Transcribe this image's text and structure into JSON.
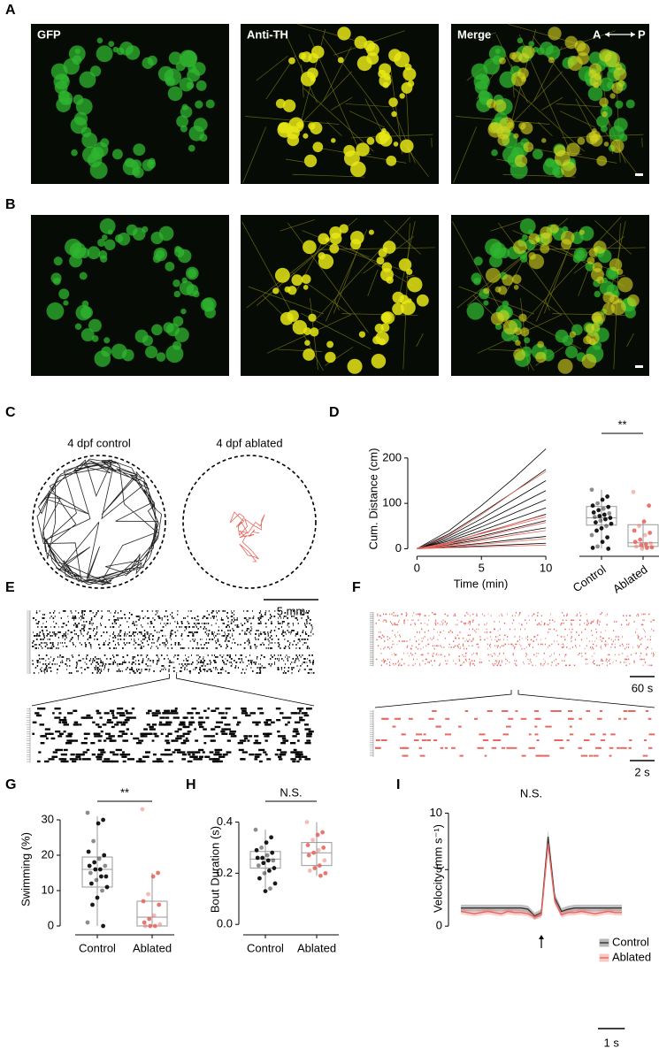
{
  "labels": [
    "A",
    "B",
    "C",
    "D",
    "E",
    "F",
    "G",
    "H",
    "I"
  ],
  "images": {
    "channels": [
      "GFP",
      "Anti-TH",
      "Merge"
    ],
    "axis_from": "A",
    "axis_to": "P"
  },
  "tracks": {
    "titles": [
      "4 dpf control",
      "4 dpf ablated"
    ],
    "scale": "5 mm"
  },
  "rasters": {
    "scale_long": "60 s",
    "scale_short": "2 s"
  },
  "chart_data": [
    {
      "type": "line",
      "xlabel": "Time (min)",
      "ylabel": "Cum. Distance (cm)",
      "x": [
        0,
        2.5,
        5,
        7.5,
        10
      ],
      "xlim": [
        -0.3,
        10.2
      ],
      "xticks": [
        0,
        5,
        10
      ],
      "ylim": [
        -5,
        225
      ],
      "yticks": [
        0,
        100,
        200
      ],
      "series": [
        {
          "color": "#000000",
          "values": [
            0,
            40,
            95,
            155,
            220
          ]
        },
        {
          "color": "#000000",
          "values": [
            0,
            33,
            78,
            125,
            175
          ]
        },
        {
          "color": "#000000",
          "values": [
            0,
            28,
            66,
            108,
            150
          ]
        },
        {
          "color": "#000000",
          "values": [
            0,
            24,
            56,
            92,
            128
          ]
        },
        {
          "color": "#000000",
          "values": [
            0,
            20,
            48,
            78,
            108
          ]
        },
        {
          "color": "#000000",
          "values": [
            0,
            17,
            40,
            65,
            90
          ]
        },
        {
          "color": "#000000",
          "values": [
            0,
            14,
            34,
            55,
            76
          ]
        },
        {
          "color": "#000000",
          "values": [
            0,
            12,
            28,
            45,
            62
          ]
        },
        {
          "color": "#000000",
          "values": [
            0,
            9,
            21,
            34,
            46
          ]
        },
        {
          "color": "#000000",
          "values": [
            0,
            5,
            12,
            20,
            27
          ]
        },
        {
          "color": "#000000",
          "values": [
            0,
            3,
            6,
            9,
            12
          ]
        },
        {
          "color": "#e8675f",
          "values": [
            0,
            30,
            75,
            125,
            170
          ]
        },
        {
          "color": "#e8675f",
          "values": [
            0,
            12,
            35,
            55,
            75
          ]
        },
        {
          "color": "#e8675f",
          "values": [
            0,
            14,
            33,
            52,
            70
          ]
        },
        {
          "color": "#e8675f",
          "values": [
            0,
            10,
            25,
            42,
            58
          ]
        },
        {
          "color": "#e8675f",
          "values": [
            0,
            7,
            18,
            30,
            40
          ]
        },
        {
          "color": "#e8675f",
          "values": [
            0,
            4,
            10,
            16,
            22
          ]
        },
        {
          "color": "#e8675f",
          "values": [
            0,
            2,
            4,
            6,
            8
          ]
        }
      ]
    },
    {
      "type": "box",
      "categories": [
        "Control",
        "Ablated"
      ],
      "colors": [
        "#000000",
        "#e8675f"
      ],
      "ylim": [
        -5,
        225
      ],
      "annotation": "**",
      "boxes": [
        {
          "min": 0,
          "q1": 52,
          "median": 68,
          "q3": 93,
          "max": 130
        },
        {
          "min": 0,
          "q1": 5,
          "median": 13,
          "q3": 53,
          "max": 60
        }
      ],
      "points": [
        [
          130,
          115,
          108,
          100,
          95,
          92,
          88,
          85,
          80,
          78,
          75,
          72,
          70,
          68,
          65,
          62,
          58,
          55,
          50,
          45,
          40,
          30,
          25,
          15,
          5,
          2,
          0
        ],
        [
          125,
          95,
          60,
          50,
          40,
          35,
          30,
          20,
          15,
          12,
          10,
          8,
          5,
          3,
          2,
          0
        ]
      ]
    },
    {
      "type": "box",
      "ylabel": "Swimming (%)",
      "categories": [
        "Control",
        "Ablated"
      ],
      "colors": [
        "#000000",
        "#e8675f"
      ],
      "ylim": [
        -1,
        33
      ],
      "yticks": [
        0,
        10,
        20,
        30
      ],
      "annotation": "**",
      "boxes": [
        {
          "min": 0,
          "q1": 11,
          "median": 16,
          "q3": 19.5,
          "max": 31
        },
        {
          "min": 0,
          "q1": 0,
          "median": 2.5,
          "q3": 7,
          "max": 15
        }
      ],
      "points": [
        [
          32,
          30,
          29,
          24,
          21,
          20,
          19,
          18,
          17,
          17,
          16,
          16,
          15,
          14,
          14,
          13,
          12,
          11,
          10,
          8,
          6,
          1,
          0
        ],
        [
          33,
          15,
          14,
          9,
          7,
          6,
          3,
          2,
          1,
          0.5,
          0,
          0,
          0
        ]
      ]
    },
    {
      "type": "box",
      "ylabel": "Bout Duration (s)",
      "categories": [
        "Control",
        "Ablated"
      ],
      "colors": [
        "#000000",
        "#e8675f"
      ],
      "ylim": [
        -0.02,
        0.45
      ],
      "yticks": [
        {
          "value": 0,
          "label": "0.0"
        },
        0.2,
        0.4
      ],
      "annotation": "N.S.",
      "boxes": [
        {
          "min": 0.14,
          "q1": 0.22,
          "median": 0.255,
          "q3": 0.285,
          "max": 0.37
        },
        {
          "min": 0.19,
          "q1": 0.23,
          "median": 0.28,
          "q3": 0.32,
          "max": 0.4
        }
      ],
      "points": [
        [
          0.37,
          0.34,
          0.32,
          0.3,
          0.29,
          0.28,
          0.27,
          0.26,
          0.26,
          0.25,
          0.25,
          0.24,
          0.23,
          0.22,
          0.21,
          0.2,
          0.18,
          0.16,
          0.14,
          0.13
        ],
        [
          0.4,
          0.36,
          0.35,
          0.33,
          0.31,
          0.3,
          0.29,
          0.28,
          0.27,
          0.25,
          0.23,
          0.22,
          0.21,
          0.2,
          0.19
        ]
      ]
    },
    {
      "type": "line",
      "title": "N.S.",
      "ylabel": "Velocity (mm s⁻¹)",
      "x": [
        -3,
        -2.75,
        -2.5,
        -2.25,
        -2,
        -1.75,
        -1.5,
        -1.25,
        -1,
        -0.75,
        -0.5,
        -0.25,
        0,
        0.25,
        0.5,
        0.75,
        1,
        1.25,
        1.5,
        1.75,
        2,
        2.25,
        2.5,
        2.75,
        3
      ],
      "xlim": [
        -3.2,
        3.1
      ],
      "ylim": [
        -0.3,
        10.5
      ],
      "yticks": [
        0,
        5,
        10
      ],
      "scalebar": {
        "value": 1,
        "label": "1 s"
      },
      "legend": "right",
      "series": [
        {
          "name": "Control",
          "color": "#333333",
          "values": [
            1.6,
            1.6,
            1.6,
            1.6,
            1.6,
            1.6,
            1.6,
            1.6,
            1.6,
            1.6,
            1.5,
            0.9,
            1.2,
            7.9,
            2.5,
            1.3,
            1.5,
            1.6,
            1.6,
            1.6,
            1.6,
            1.6,
            1.6,
            1.6,
            1.6
          ],
          "errors": [
            0.3,
            0.3,
            0.3,
            0.3,
            0.3,
            0.3,
            0.3,
            0.3,
            0.3,
            0.3,
            0.3,
            0.3,
            0.3,
            0.6,
            0.4,
            0.3,
            0.3,
            0.3,
            0.3,
            0.3,
            0.3,
            0.3,
            0.3,
            0.3,
            0.3
          ]
        },
        {
          "name": "Ablated",
          "color": "#e8675f",
          "values": [
            1.3,
            1.2,
            1.1,
            1.2,
            1.3,
            1.2,
            1.1,
            1.3,
            1.2,
            1.2,
            1.1,
            0.8,
            1.0,
            7.3,
            2.2,
            1.0,
            1.2,
            1.2,
            1.3,
            1.2,
            1.1,
            1.2,
            1.3,
            1.2,
            1.2
          ],
          "errors": [
            0.25,
            0.25,
            0.25,
            0.25,
            0.25,
            0.25,
            0.25,
            0.25,
            0.25,
            0.25,
            0.25,
            0.25,
            0.25,
            0.5,
            0.35,
            0.25,
            0.25,
            0.25,
            0.25,
            0.25,
            0.25,
            0.25,
            0.25,
            0.25,
            0.25
          ]
        }
      ]
    }
  ]
}
